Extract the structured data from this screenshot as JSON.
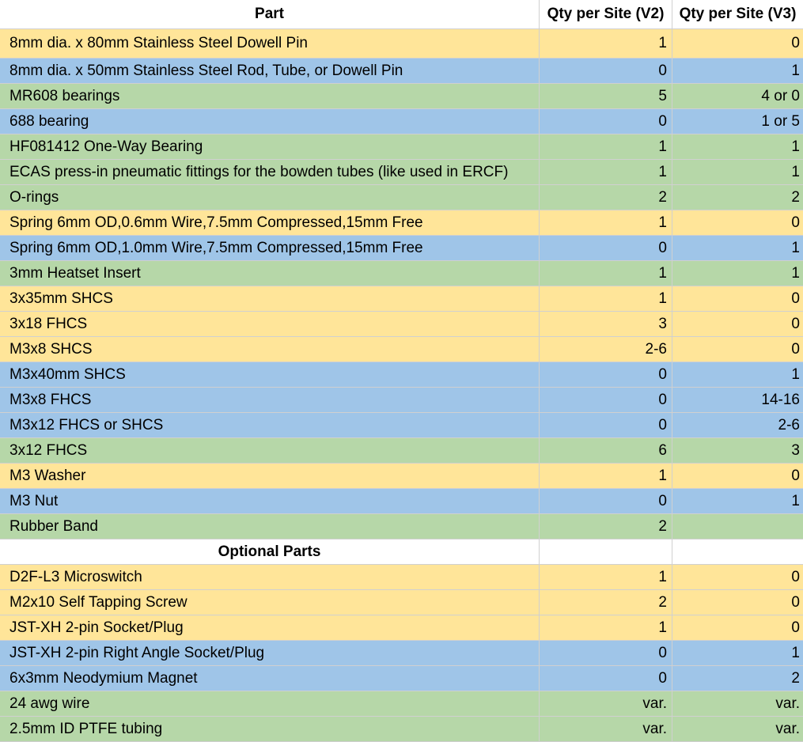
{
  "header": {
    "part": "Part",
    "v2": "Qty per Site (V2)",
    "v3": "Qty per Site (V3)"
  },
  "colors": {
    "yellow": "#ffe599",
    "blue": "#9fc5e8",
    "green": "#b6d7a8"
  },
  "rows": [
    {
      "part": "8mm dia. x 80mm Stainless Steel Dowell Pin",
      "v2": "1",
      "v3": "0",
      "color": "yellow"
    },
    {
      "part": "8mm dia. x 50mm Stainless Steel Rod, Tube, or Dowell Pin",
      "v2": "0",
      "v3": "1",
      "color": "blue"
    },
    {
      "part": "MR608 bearings",
      "v2": "5",
      "v3": "4 or 0",
      "color": "green"
    },
    {
      "part": "688 bearing",
      "v2": "0",
      "v3": "1 or 5",
      "color": "blue"
    },
    {
      "part": "HF081412 One-Way Bearing",
      "v2": "1",
      "v3": "1",
      "color": "green"
    },
    {
      "part": "ECAS press-in pneumatic fittings for the bowden tubes (like used in ERCF)",
      "v2": "1",
      "v3": "1",
      "color": "green"
    },
    {
      "part": "O-rings",
      "v2": "2",
      "v3": "2",
      "color": "green"
    },
    {
      "part": "Spring 6mm OD,0.6mm Wire,7.5mm Compressed,15mm Free",
      "v2": "1",
      "v3": "0",
      "color": "yellow"
    },
    {
      "part": "Spring 6mm OD,1.0mm Wire,7.5mm Compressed,15mm Free",
      "v2": "0",
      "v3": "1",
      "color": "blue"
    },
    {
      "part": "3mm Heatset Insert",
      "v2": "1",
      "v3": "1",
      "color": "green"
    },
    {
      "part": "3x35mm SHCS",
      "v2": "1",
      "v3": "0",
      "color": "yellow"
    },
    {
      "part": "3x18 FHCS",
      "v2": "3",
      "v3": "0",
      "color": "yellow"
    },
    {
      "part": "M3x8 SHCS",
      "v2": "2-6",
      "v3": "0",
      "color": "yellow"
    },
    {
      "part": "M3x40mm SHCS",
      "v2": "0",
      "v3": "1",
      "color": "blue"
    },
    {
      "part": "M3x8 FHCS",
      "v2": "0",
      "v3": "14-16",
      "color": "blue"
    },
    {
      "part": "M3x12 FHCS or SHCS",
      "v2": "0",
      "v3": "2-6",
      "color": "blue"
    },
    {
      "part": "3x12 FHCS",
      "v2": "6",
      "v3": "3",
      "color": "green"
    },
    {
      "part": "M3 Washer",
      "v2": "1",
      "v3": "0",
      "color": "yellow"
    },
    {
      "part": "M3 Nut",
      "v2": "0",
      "v3": "1",
      "color": "blue"
    },
    {
      "part": "Rubber Band",
      "v2": "2",
      "v3": "",
      "color": "green"
    },
    {
      "part": "Optional Parts",
      "v2": "",
      "v3": "",
      "color": "section"
    },
    {
      "part": "D2F-L3 Microswitch",
      "v2": "1",
      "v3": "0",
      "color": "yellow"
    },
    {
      "part": "M2x10 Self Tapping Screw",
      "v2": "2",
      "v3": "0",
      "color": "yellow"
    },
    {
      "part": "JST-XH 2-pin Socket/Plug",
      "v2": "1",
      "v3": "0",
      "color": "yellow"
    },
    {
      "part": "JST-XH 2-pin Right Angle Socket/Plug",
      "v2": "0",
      "v3": "1",
      "color": "blue"
    },
    {
      "part": "6x3mm Neodymium Magnet",
      "v2": "0",
      "v3": "2",
      "color": "blue"
    },
    {
      "part": "24 awg wire",
      "v2": "var.",
      "v3": "var.",
      "color": "green"
    },
    {
      "part": "2.5mm ID PTFE tubing",
      "v2": "var.",
      "v3": "var.",
      "color": "green"
    }
  ]
}
